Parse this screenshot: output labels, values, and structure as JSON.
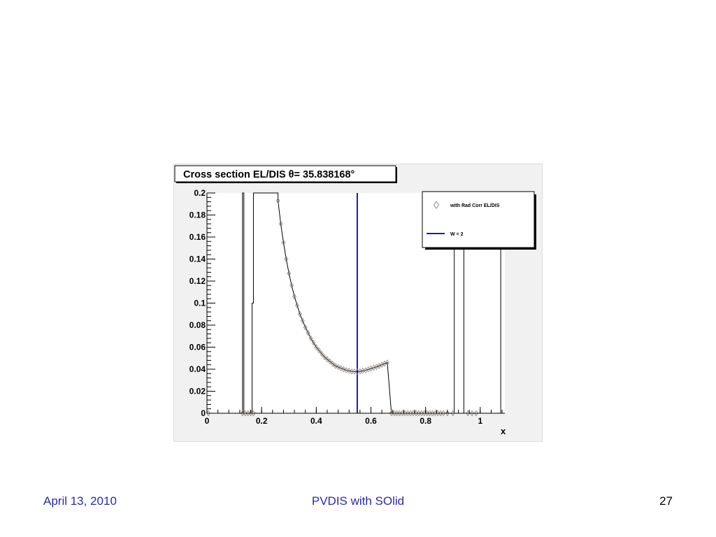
{
  "footer": {
    "date": "April 13, 2010",
    "title": "PVDIS with SOlid",
    "page_number": "27"
  },
  "chart_data": {
    "type": "scatter",
    "title": "Cross section EL/DIS θ= 35.838168°",
    "xlabel": "x",
    "ylabel": "",
    "xlim": [
      0,
      1.09
    ],
    "ylim": [
      0,
      0.2
    ],
    "grid": false,
    "legend_position": "top-right",
    "x_ticks": [
      {
        "value": 0,
        "label": "0"
      },
      {
        "value": 0.2,
        "label": "0.2"
      },
      {
        "value": 0.4,
        "label": "0.4"
      },
      {
        "value": 0.6,
        "label": "0.6"
      },
      {
        "value": 0.8,
        "label": "0.8"
      },
      {
        "value": 1,
        "label": "1"
      }
    ],
    "y_ticks": [
      {
        "value": 0,
        "label": "0"
      },
      {
        "value": 0.02,
        "label": "0.02"
      },
      {
        "value": 0.04,
        "label": "0.04"
      },
      {
        "value": 0.06,
        "label": "0.06"
      },
      {
        "value": 0.08,
        "label": "0.08"
      },
      {
        "value": 0.1,
        "label": "0.1"
      },
      {
        "value": 0.12,
        "label": "0.12"
      },
      {
        "value": 0.14,
        "label": "0.14"
      },
      {
        "value": 0.16,
        "label": "0.16"
      },
      {
        "value": 0.18,
        "label": "0.18"
      },
      {
        "value": 0.2,
        "label": "0.2"
      }
    ],
    "series": [
      {
        "name": "with Rad Corr EL/DIS",
        "marker": "open-diamond",
        "color": "#8a7f77",
        "points": [
          [
            0.005,
            0.0
          ],
          [
            0.13,
            0.0
          ],
          [
            0.14,
            0.0
          ],
          [
            0.15,
            0.0
          ],
          [
            0.16,
            0.0
          ],
          [
            0.17,
            0.0
          ],
          [
            0.26,
            0.193
          ],
          [
            0.27,
            0.172
          ],
          [
            0.28,
            0.155
          ],
          [
            0.29,
            0.14
          ],
          [
            0.3,
            0.127
          ],
          [
            0.31,
            0.116
          ],
          [
            0.32,
            0.106
          ],
          [
            0.33,
            0.098
          ],
          [
            0.34,
            0.09
          ],
          [
            0.35,
            0.084
          ],
          [
            0.36,
            0.078
          ],
          [
            0.37,
            0.073
          ],
          [
            0.38,
            0.068
          ],
          [
            0.39,
            0.064
          ],
          [
            0.4,
            0.06
          ],
          [
            0.41,
            0.057
          ],
          [
            0.42,
            0.054
          ],
          [
            0.43,
            0.051
          ],
          [
            0.44,
            0.049
          ],
          [
            0.45,
            0.047
          ],
          [
            0.46,
            0.045
          ],
          [
            0.47,
            0.043
          ],
          [
            0.48,
            0.042
          ],
          [
            0.49,
            0.041
          ],
          [
            0.5,
            0.04
          ],
          [
            0.51,
            0.039
          ],
          [
            0.52,
            0.0385
          ],
          [
            0.53,
            0.038
          ],
          [
            0.54,
            0.0378
          ],
          [
            0.55,
            0.0378
          ],
          [
            0.56,
            0.038
          ],
          [
            0.57,
            0.0385
          ],
          [
            0.58,
            0.039
          ],
          [
            0.59,
            0.0398
          ],
          [
            0.6,
            0.0405
          ],
          [
            0.61,
            0.0413
          ],
          [
            0.62,
            0.042
          ],
          [
            0.63,
            0.043
          ],
          [
            0.64,
            0.044
          ],
          [
            0.65,
            0.045
          ],
          [
            0.66,
            0.046
          ],
          [
            0.675,
            0.0
          ],
          [
            0.685,
            0.0
          ],
          [
            0.695,
            0.0
          ],
          [
            0.705,
            0.0
          ],
          [
            0.715,
            0.0
          ],
          [
            0.725,
            0.0
          ],
          [
            0.735,
            0.0
          ],
          [
            0.745,
            0.0
          ],
          [
            0.755,
            0.0
          ],
          [
            0.765,
            0.0
          ],
          [
            0.775,
            0.0
          ],
          [
            0.785,
            0.0
          ],
          [
            0.795,
            0.0
          ],
          [
            0.805,
            0.0
          ],
          [
            0.815,
            0.0
          ],
          [
            0.825,
            0.0
          ],
          [
            0.835,
            0.0
          ],
          [
            0.845,
            0.0
          ],
          [
            0.855,
            0.0
          ],
          [
            0.865,
            0.0
          ],
          [
            0.88,
            0.0
          ],
          [
            0.9,
            0.0
          ],
          [
            0.955,
            0.0
          ],
          [
            0.97,
            0.0
          ],
          [
            0.985,
            0.0
          ]
        ]
      },
      {
        "name": "",
        "type": "line",
        "color": "#000000",
        "points": [
          [
            0.0,
            0.0
          ],
          [
            0.13,
            0.0
          ],
          [
            0.13,
            0.2
          ],
          [
            0.135,
            0.2
          ],
          [
            0.135,
            0.0
          ],
          [
            0.165,
            0.0
          ],
          [
            0.165,
            0.1
          ],
          [
            0.17,
            0.1
          ],
          [
            0.17,
            0.2
          ],
          [
            0.172,
            0.2
          ],
          [
            0.26,
            0.2
          ],
          [
            0.26,
            0.193
          ],
          [
            0.27,
            0.172
          ],
          [
            0.28,
            0.155
          ],
          [
            0.29,
            0.14
          ],
          [
            0.3,
            0.127
          ],
          [
            0.31,
            0.116
          ],
          [
            0.32,
            0.106
          ],
          [
            0.33,
            0.098
          ],
          [
            0.34,
            0.09
          ],
          [
            0.35,
            0.084
          ],
          [
            0.36,
            0.078
          ],
          [
            0.37,
            0.073
          ],
          [
            0.38,
            0.068
          ],
          [
            0.39,
            0.064
          ],
          [
            0.4,
            0.06
          ],
          [
            0.41,
            0.057
          ],
          [
            0.42,
            0.054
          ],
          [
            0.43,
            0.051
          ],
          [
            0.44,
            0.049
          ],
          [
            0.45,
            0.047
          ],
          [
            0.46,
            0.045
          ],
          [
            0.47,
            0.043
          ],
          [
            0.48,
            0.042
          ],
          [
            0.49,
            0.041
          ],
          [
            0.5,
            0.04
          ],
          [
            0.51,
            0.039
          ],
          [
            0.52,
            0.0385
          ],
          [
            0.53,
            0.038
          ],
          [
            0.54,
            0.0378
          ],
          [
            0.55,
            0.0378
          ],
          [
            0.56,
            0.038
          ],
          [
            0.57,
            0.0385
          ],
          [
            0.58,
            0.039
          ],
          [
            0.59,
            0.0398
          ],
          [
            0.6,
            0.0405
          ],
          [
            0.61,
            0.0413
          ],
          [
            0.62,
            0.042
          ],
          [
            0.63,
            0.043
          ],
          [
            0.64,
            0.044
          ],
          [
            0.65,
            0.045
          ],
          [
            0.66,
            0.046
          ],
          [
            0.675,
            0.0
          ],
          [
            0.905,
            0.0
          ],
          [
            0.905,
            0.2
          ],
          [
            0.94,
            0.2
          ],
          [
            0.94,
            0.0
          ],
          [
            1.075,
            0.0
          ],
          [
            1.075,
            0.2
          ]
        ]
      },
      {
        "name": "W = 2",
        "type": "vertical-line",
        "color": "#1a1acc",
        "x": 0.55
      }
    ]
  }
}
